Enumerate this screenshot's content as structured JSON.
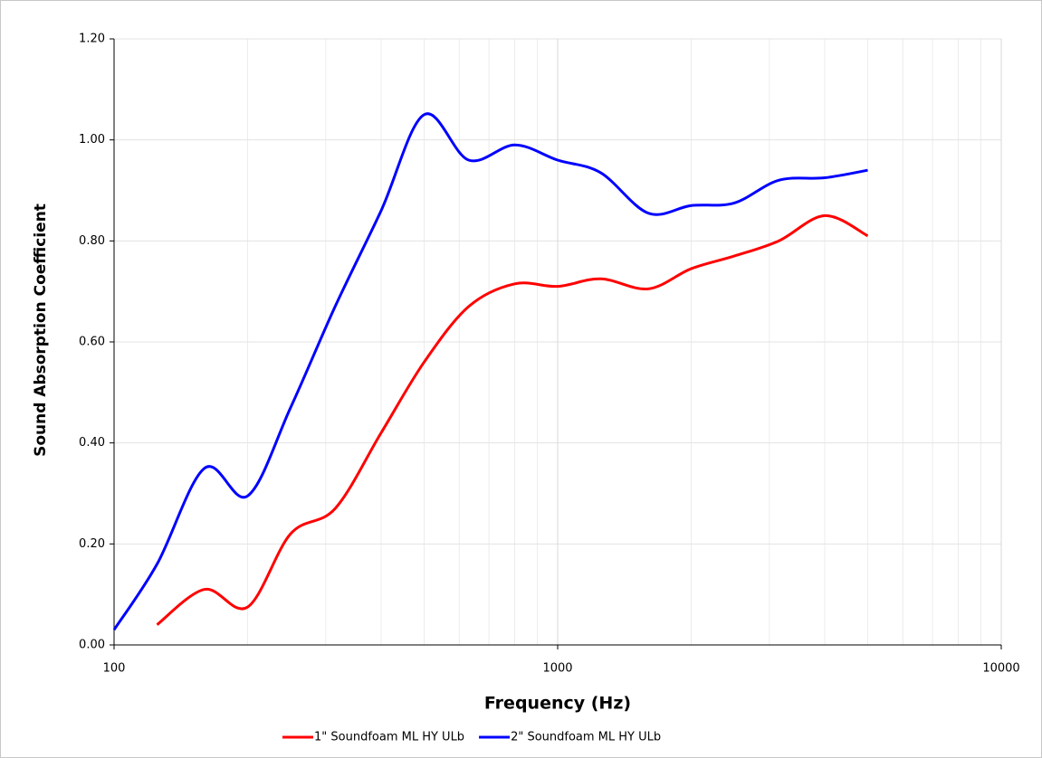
{
  "chart_data": {
    "type": "line",
    "x_label": "Frequency (Hz)",
    "y_label": "Sound Absorption Coefficient",
    "x": [
      100,
      125,
      160,
      200,
      250,
      315,
      400,
      500,
      630,
      800,
      1000,
      1250,
      1600,
      2000,
      2500,
      3150,
      4000,
      5000
    ],
    "series": [
      {
        "name": "1\" Soundfoam ML HY ULb",
        "color": "#ff0000",
        "values": [
          null,
          0.04,
          0.11,
          0.075,
          0.22,
          0.27,
          0.42,
          0.56,
          0.67,
          0.715,
          0.71,
          0.725,
          0.705,
          0.745,
          0.77,
          0.8,
          0.85,
          0.81
        ]
      },
      {
        "name": "2\" Soundfoam ML HY ULb",
        "color": "#0000ff",
        "values": [
          0.03,
          0.16,
          0.35,
          0.295,
          0.47,
          0.67,
          0.86,
          1.05,
          0.96,
          0.99,
          0.96,
          0.935,
          0.855,
          0.87,
          0.875,
          0.92,
          0.925,
          0.94
        ]
      }
    ],
    "xlim": [
      100,
      10000
    ],
    "xticks": [
      100,
      1000,
      10000
    ],
    "x_log": true,
    "ylim": [
      0,
      1.2
    ],
    "yticks": [
      {
        "value": 0,
        "label": "0.00"
      },
      {
        "value": 0.2,
        "label": "0.20"
      },
      {
        "value": 0.4,
        "label": "0.40"
      },
      {
        "value": 0.6,
        "label": "0.60"
      },
      {
        "value": 0.8,
        "label": "0.80"
      },
      {
        "value": 1.0,
        "label": "1.00"
      },
      {
        "value": 1.2,
        "label": "1.20"
      }
    ],
    "grid": true,
    "legend": "bottom"
  }
}
